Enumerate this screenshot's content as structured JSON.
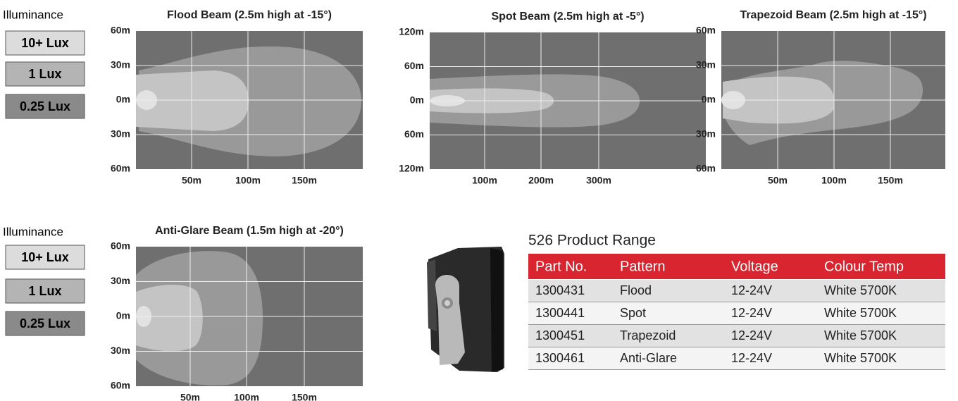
{
  "legends": [
    {
      "title": "Illuminance",
      "items": [
        "10+ Lux",
        "1 Lux",
        "0.25 Lux"
      ]
    },
    {
      "title": "Illuminance",
      "items": [
        "10+ Lux",
        "1 Lux",
        "0.25 Lux"
      ]
    }
  ],
  "beams": [
    {
      "title": "Flood Beam (2.5m high at -15°)",
      "yticks": [
        "60m",
        "30m",
        "0m",
        "30m",
        "60m"
      ],
      "xticks": [
        "50m",
        "100m",
        "150m"
      ]
    },
    {
      "title": "Spot Beam (2.5m high at -5°)",
      "yticks": [
        "120m",
        "60m",
        "0m",
        "60m",
        "120m"
      ],
      "xticks": [
        "100m",
        "200m",
        "300m"
      ]
    },
    {
      "title": "Trapezoid Beam (2.5m high at -15°)",
      "yticks": [
        "60m",
        "30m",
        "0m",
        "30m",
        "60m"
      ],
      "xticks": [
        "50m",
        "100m",
        "150m"
      ]
    },
    {
      "title": "Anti-Glare Beam (1.5m high at -20°)",
      "yticks": [
        "60m",
        "30m",
        "0m",
        "30m",
        "60m"
      ],
      "xticks": [
        "50m",
        "100m",
        "150m"
      ]
    }
  ],
  "table": {
    "title": "526 Product Range",
    "header": [
      "Part No.",
      "Pattern",
      "Voltage",
      "Colour Temp"
    ],
    "rows": [
      [
        "1300431",
        "Flood",
        "12-24V",
        "White 5700K"
      ],
      [
        "1300441",
        "Spot",
        "12-24V",
        "White 5700K"
      ],
      [
        "1300451",
        "Trapezoid",
        "12-24V",
        "White 5700K"
      ],
      [
        "1300461",
        "Anti-Glare",
        "12-24V",
        "White 5700K"
      ]
    ]
  }
}
